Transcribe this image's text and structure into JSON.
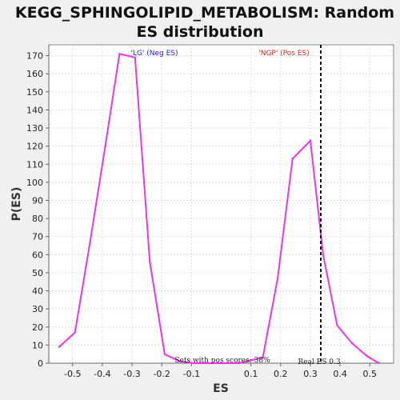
{
  "chart_data": {
    "type": "line",
    "title_line1": "KEGG_SPHINGOLIPID_METABOLISM: Random",
    "title_line2": "ES distribution",
    "xlabel": "ES",
    "ylabel": "P(ES)",
    "xlim": [
      -0.58,
      0.58
    ],
    "ylim": [
      0,
      176
    ],
    "x_ticks": [
      -0.5,
      -0.4,
      -0.3,
      -0.2,
      -0.1,
      0.1,
      0.2,
      0.3,
      0.4,
      0.5
    ],
    "x_tick_labels": [
      "-0.5",
      "-0.4",
      "-0.3",
      "-0.2",
      "-0.1",
      "0.1",
      "0.2",
      "0.3",
      "0.4",
      "0.5"
    ],
    "y_ticks": [
      0,
      10,
      20,
      30,
      40,
      50,
      60,
      70,
      80,
      90,
      100,
      110,
      120,
      130,
      140,
      150,
      160,
      170
    ],
    "grid": true,
    "line_color": "#ee33ee",
    "series": [
      {
        "x": [
          -0.545,
          -0.492,
          -0.441,
          -0.39,
          -0.342,
          -0.29,
          -0.24,
          -0.19,
          -0.14,
          -0.09,
          -0.04,
          0.01,
          0.06,
          0.11,
          0.14,
          0.19,
          0.24,
          0.3,
          0.343,
          0.39,
          0.44,
          0.49,
          0.53
        ],
        "values": [
          9,
          17,
          67,
          120,
          171,
          169,
          56,
          5,
          1,
          0,
          0,
          0,
          0,
          2,
          3,
          47,
          113,
          123,
          60,
          21,
          11,
          4,
          0
        ]
      }
    ],
    "annotations": {
      "neg_label": "'LG' (Neg ES)",
      "neg_color": "#2222cc",
      "pos_label": "'NGP' (Pos ES)",
      "pos_color": "#dd2222",
      "sets_text": "Sets with pos scores: 38%",
      "real_es_text": "Real ES 0.3",
      "real_es": 0.335
    }
  }
}
